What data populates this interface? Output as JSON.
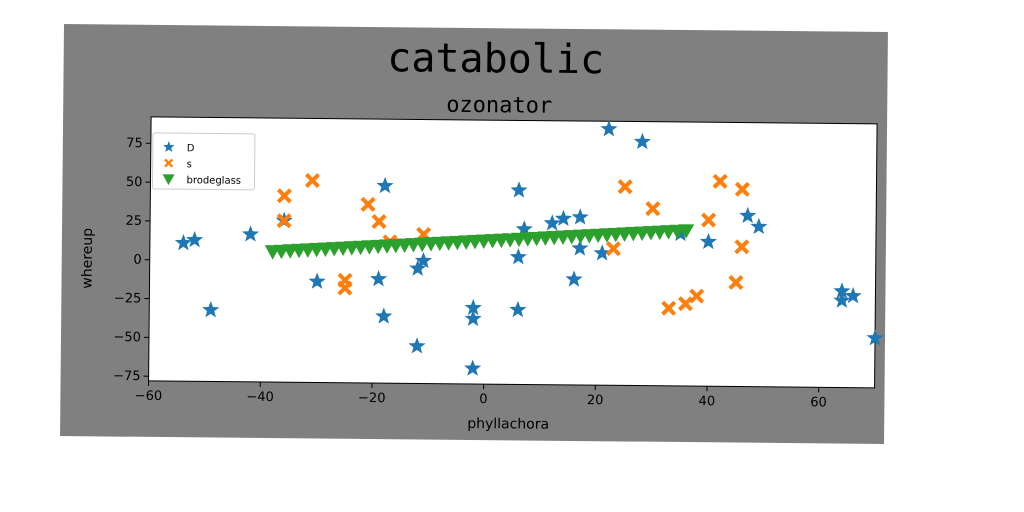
{
  "chart_data": {
    "type": "scatter",
    "title": "catabolic",
    "subtitle": "ozonator",
    "xlabel": "phyllachora",
    "ylabel": "whereup",
    "xlim": [
      -60,
      70
    ],
    "ylim": [
      -78,
      92
    ],
    "xticks": [
      -60,
      -40,
      -20,
      0,
      20,
      40,
      60
    ],
    "yticks": [
      -75,
      -50,
      -25,
      0,
      25,
      50,
      75
    ],
    "grid": false,
    "legend_position": "top-left",
    "series": [
      {
        "name": "D",
        "marker": "star",
        "color": "#1f77b4",
        "points": [
          [
            -54,
            11
          ],
          [
            -52,
            13
          ],
          [
            -49,
            -32
          ],
          [
            -42,
            17
          ],
          [
            -36,
            26
          ],
          [
            -30,
            -13
          ],
          [
            -19,
            -11
          ],
          [
            -18,
            49
          ],
          [
            -18,
            -35
          ],
          [
            -12,
            -4
          ],
          [
            -12,
            -54
          ],
          [
            -11,
            1
          ],
          [
            -2,
            -68
          ],
          [
            -2,
            -36
          ],
          [
            -2,
            -29
          ],
          [
            6,
            47
          ],
          [
            6,
            4
          ],
          [
            6,
            -30
          ],
          [
            7,
            22
          ],
          [
            12,
            26
          ],
          [
            14,
            29
          ],
          [
            17,
            30
          ],
          [
            16,
            -10
          ],
          [
            17,
            10
          ],
          [
            21,
            7
          ],
          [
            22,
            87
          ],
          [
            28,
            79
          ],
          [
            35,
            20
          ],
          [
            40,
            15
          ],
          [
            47,
            32
          ],
          [
            49,
            25
          ],
          [
            64,
            -22
          ],
          [
            64,
            -16
          ],
          [
            66,
            -19
          ],
          [
            70,
            -46
          ]
        ]
      },
      {
        "name": "s",
        "marker": "x",
        "color": "#ff7f0e",
        "points": [
          [
            -36,
            42
          ],
          [
            -36,
            26
          ],
          [
            -31,
            52
          ],
          [
            -25,
            -12
          ],
          [
            -25,
            -17
          ],
          [
            -21,
            37
          ],
          [
            -19,
            26
          ],
          [
            -17,
            13
          ],
          [
            -11,
            18
          ],
          [
            23,
            10
          ],
          [
            25,
            50
          ],
          [
            30,
            36
          ],
          [
            33,
            -28
          ],
          [
            36,
            -25
          ],
          [
            38,
            -20
          ],
          [
            40,
            29
          ],
          [
            42,
            54
          ],
          [
            45,
            -11
          ],
          [
            46,
            12
          ],
          [
            46,
            49
          ]
        ]
      },
      {
        "name": "brodeglass",
        "marker": "triangle-down",
        "color": "#2ca02c",
        "line_from": [
          -38,
          6
        ],
        "line_to": [
          36,
          22
        ]
      }
    ]
  }
}
